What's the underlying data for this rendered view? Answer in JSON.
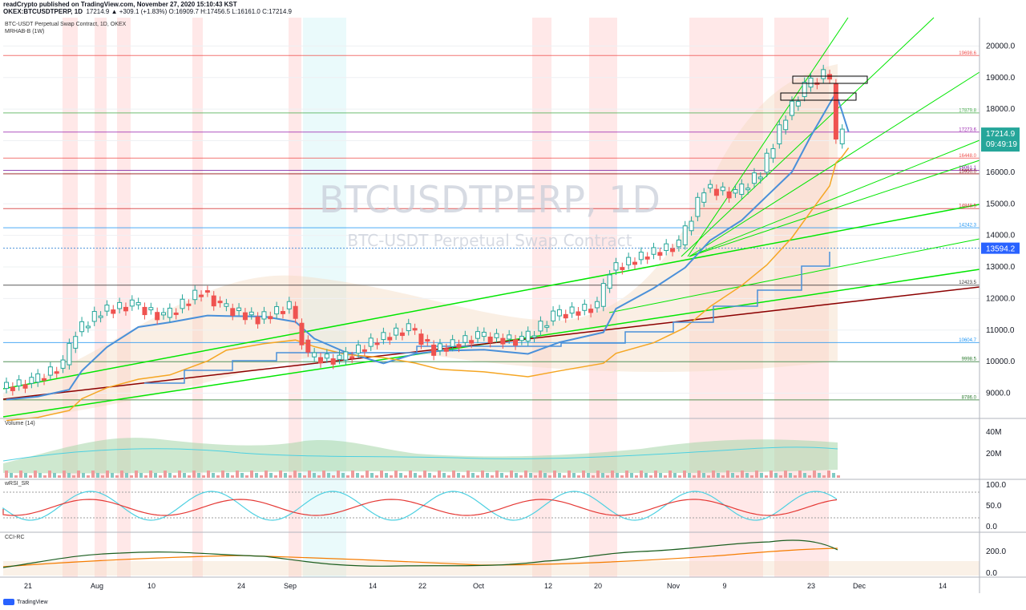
{
  "header": {
    "publisher_line": "readCrypto published on TradingView.com, November 27, 2020 15:10:43 KST",
    "symbol_line": "OKEX:BTCUSDTPERP, 1D",
    "ohlc_line": "17214.9 ▲ +309.1 (+1.83%) O:16909.7 H:17456.5 L:16161.0 C:17214.9"
  },
  "legend": {
    "series_title": "BTC-USDT Perpetual Swap Contract, 1D, OKEX",
    "indicator": "MRHAB-B (1W)"
  },
  "watermark": {
    "symbol": "BTCUSDTPERP, 1D",
    "description": "BTC-USDT Perpetual Swap Contract"
  },
  "footer": {
    "brand": "TradingView"
  },
  "colors": {
    "up": "#26a69a",
    "down": "#ef5350",
    "green_line": "#00e600",
    "darkred_line": "#8b0000",
    "blue_line": "#4a90d9",
    "orange_line": "#f5a623"
  },
  "chart_data": [
    {
      "type": "candlestick",
      "pane": "price",
      "y_ticks": [
        "20000.0",
        "19000.0",
        "18000.0",
        "17000.0",
        "16000.0",
        "15000.0",
        "14000.0",
        "13000.0",
        "12000.0",
        "11000.0",
        "10000.0",
        "9000.0"
      ],
      "ylim": [
        8200,
        20900
      ],
      "x_ticks": [
        "21",
        "Aug",
        "10",
        "24",
        "Sep",
        "14",
        "22",
        "Oct",
        "12",
        "20",
        "Nov",
        "9",
        "23",
        "Dec",
        "14"
      ],
      "last_price": "17214.9",
      "countdown": "09:49:19",
      "marker_price": "13594.2",
      "price_labels": [
        {
          "text": "19698.6",
          "value": 19698.6,
          "color": "#ef5350"
        },
        {
          "text": "17879.8",
          "value": 17879.8,
          "color": "#4caf50"
        },
        {
          "text": "17273.6",
          "value": 17273.6,
          "color": "#9c27b0"
        },
        {
          "text": "16448.0",
          "value": 16448.0,
          "color": "#ef5350"
        },
        {
          "text": "16061.1",
          "value": 16061.1,
          "color": "#7b1fa2"
        },
        {
          "text": "15950.0",
          "value": 15950.0,
          "color": "#8b0000"
        },
        {
          "text": "14848.5",
          "value": 14848.5,
          "color": "#d32f2f"
        },
        {
          "text": "14242.3",
          "value": 14242.3,
          "color": "#2196f3"
        },
        {
          "text": "12423.5",
          "value": 12423.5,
          "color": "#333333"
        },
        {
          "text": "10604.7",
          "value": 10604.7,
          "color": "#2196f3"
        },
        {
          "text": "9998.5",
          "value": 9998.5,
          "color": "#2e7d32"
        },
        {
          "text": "8786.0",
          "value": 8786.0,
          "color": "#2e7d32"
        }
      ],
      "close_path": [
        {
          "date": "Jul 16",
          "close": 9150
        },
        {
          "date": "Jul 21",
          "close": 9350
        },
        {
          "date": "Jul 26",
          "close": 9900
        },
        {
          "date": "Jul 28",
          "close": 10950
        },
        {
          "date": "Aug 1",
          "close": 11600
        },
        {
          "date": "Aug 6",
          "close": 11800
        },
        {
          "date": "Aug 11",
          "close": 11400
        },
        {
          "date": "Aug 17",
          "close": 12250
        },
        {
          "date": "Aug 20",
          "close": 11750
        },
        {
          "date": "Aug 26",
          "close": 11350
        },
        {
          "date": "Aug 31",
          "close": 11750
        },
        {
          "date": "Sep 3",
          "close": 10150
        },
        {
          "date": "Sep 8",
          "close": 10050
        },
        {
          "date": "Sep 14",
          "close": 10700
        },
        {
          "date": "Sep 19",
          "close": 11050
        },
        {
          "date": "Sep 23",
          "close": 10350
        },
        {
          "date": "Sep 30",
          "close": 10800
        },
        {
          "date": "Oct 7",
          "close": 10650
        },
        {
          "date": "Oct 12",
          "close": 11450
        },
        {
          "date": "Oct 19",
          "close": 11750
        },
        {
          "date": "Oct 21",
          "close": 12900
        },
        {
          "date": "Oct 27",
          "close": 13400
        },
        {
          "date": "Nov 1",
          "close": 13700
        },
        {
          "date": "Nov 5",
          "close": 15500
        },
        {
          "date": "Nov 10",
          "close": 15300
        },
        {
          "date": "Nov 14",
          "close": 16000
        },
        {
          "date": "Nov 18",
          "close": 17800
        },
        {
          "date": "Nov 21",
          "close": 18700
        },
        {
          "date": "Nov 24",
          "close": 19100
        },
        {
          "date": "Nov 25",
          "close": 18800
        },
        {
          "date": "Nov 26",
          "close": 16900
        },
        {
          "date": "Nov 27",
          "close": 17214.9
        }
      ]
    },
    {
      "type": "area",
      "pane": "volume",
      "title": "Volume (14)",
      "y_ticks": [
        "40M",
        "20M"
      ]
    },
    {
      "type": "line",
      "pane": "oscillator",
      "title": "wRSI_SR",
      "y_ticks": [
        "100.0",
        "50.0",
        "0.0"
      ]
    },
    {
      "type": "line",
      "pane": "oscillator",
      "title": "CCI-RC",
      "y_ticks": [
        "200.0",
        "0.0"
      ]
    }
  ]
}
